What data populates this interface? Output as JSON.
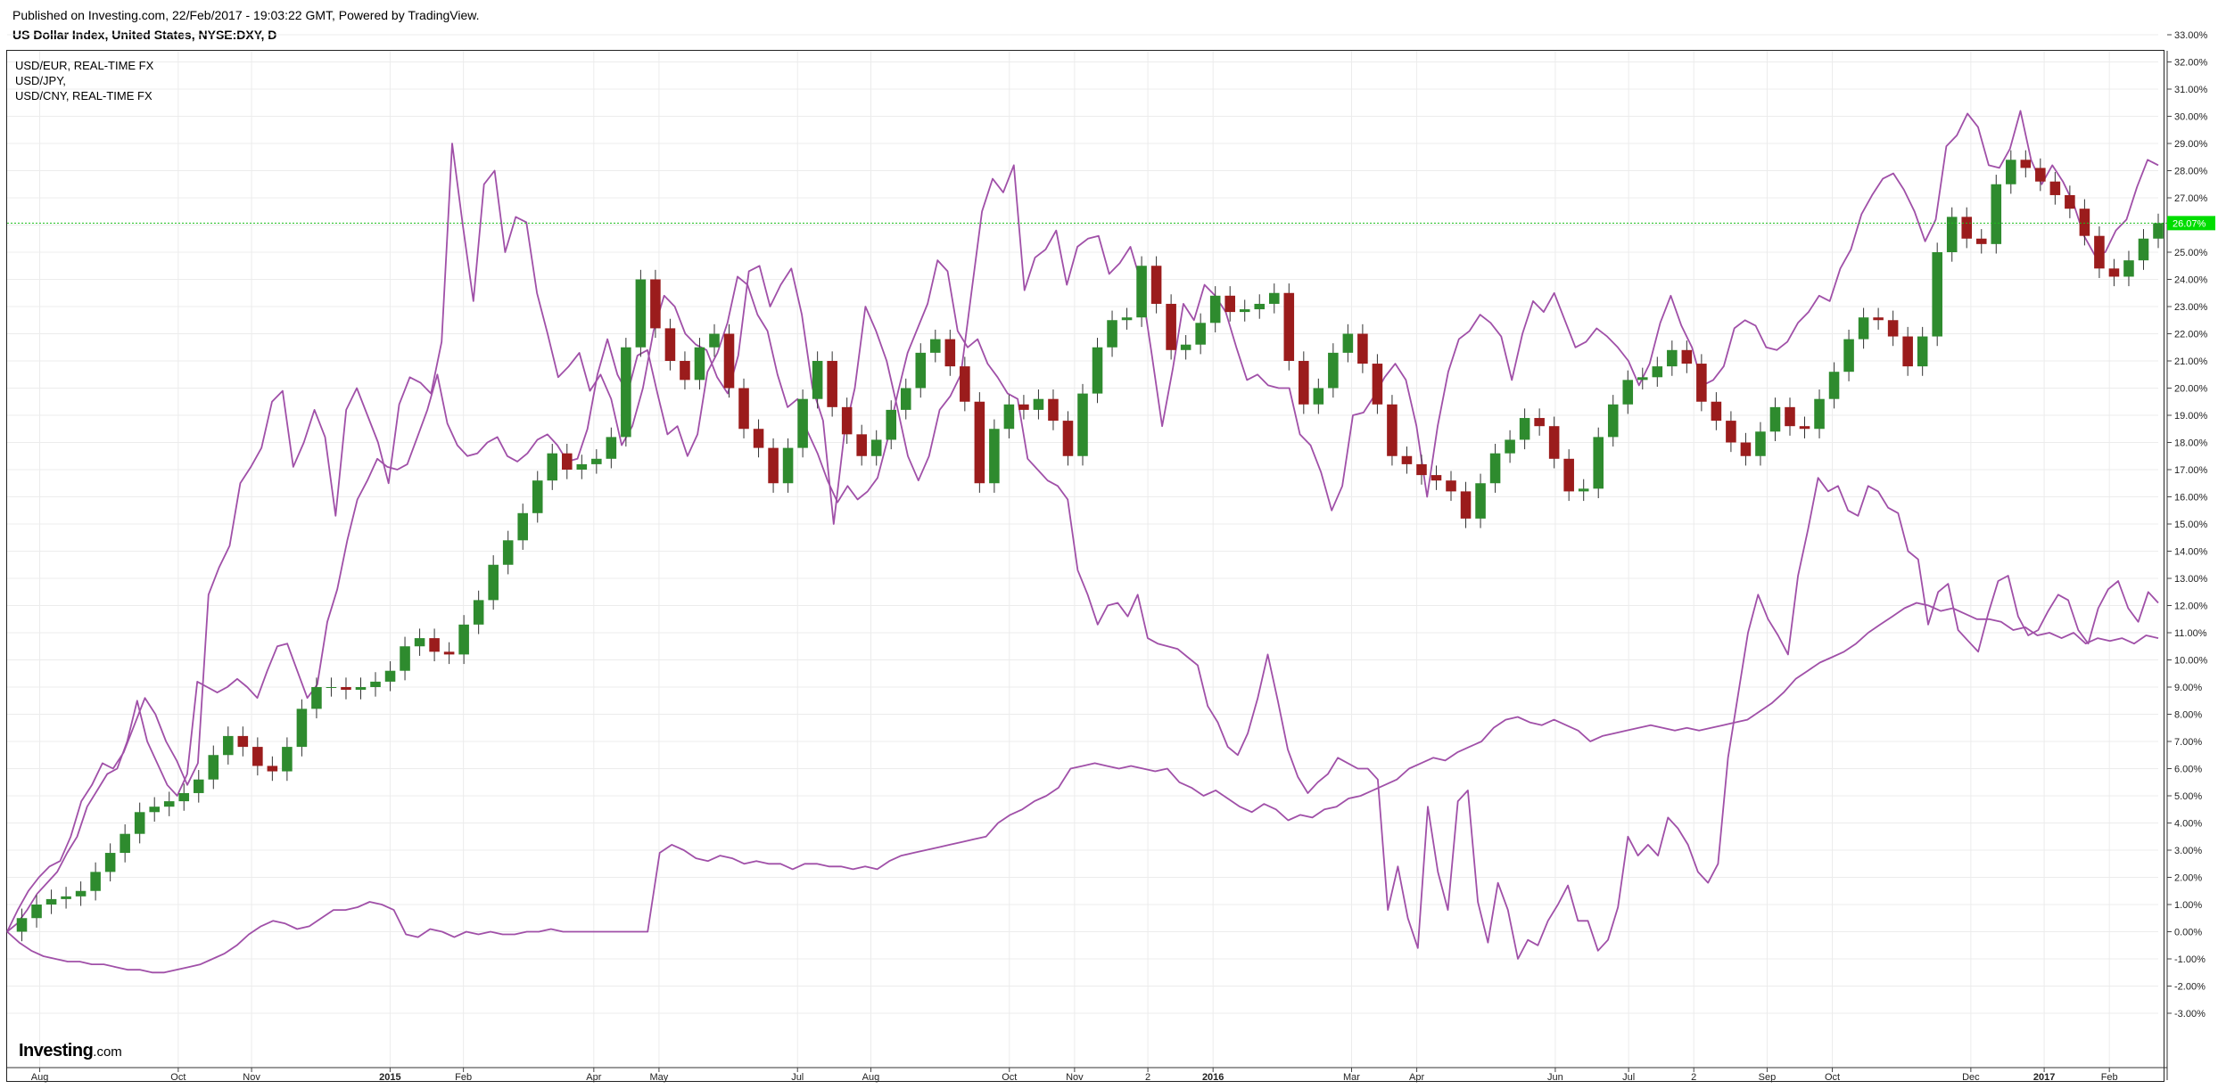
{
  "header": {
    "published": "Published on Investing.com, 22/Feb/2017 - 19:03:22 GMT, Powered by TradingView.",
    "title": "US Dollar Index, United States, NYSE:DXY, D"
  },
  "legend": {
    "items": [
      "USD/EUR, REAL-TIME FX",
      "USD/JPY,",
      "USD/CNY, REAL-TIME FX"
    ]
  },
  "logo": {
    "text": "Investing",
    "suffix": ".com"
  },
  "colors": {
    "up_candle": "#2e8b2e",
    "down_candle": "#9b1c1c",
    "compare_lines": "#a050a8",
    "last_price_badge": "#00dd00",
    "last_price_line": "#1bbf1b"
  },
  "chart_data": {
    "type": "line",
    "y_axis_unit": "%",
    "ylim": [
      -3.5,
      33.6
    ],
    "y_ticks": [
      "33.00%",
      "32.00%",
      "31.00%",
      "30.00%",
      "29.00%",
      "28.00%",
      "27.00%",
      "26.00%",
      "25.00%",
      "24.00%",
      "23.00%",
      "22.00%",
      "21.00%",
      "20.00%",
      "19.00%",
      "18.00%",
      "17.00%",
      "16.00%",
      "15.00%",
      "14.00%",
      "13.00%",
      "12.00%",
      "11.00%",
      "10.00%",
      "9.00%",
      "8.00%",
      "7.00%",
      "6.00%",
      "5.00%",
      "4.00%",
      "3.00%",
      "2.00%",
      "1.00%",
      "0.00%",
      "-1.00%",
      "-2.00%",
      "-3.00%"
    ],
    "x_ticks": [
      {
        "label": "Aug",
        "i": 4,
        "bold": false
      },
      {
        "label": "Oct",
        "i": 21,
        "bold": false
      },
      {
        "label": "Nov",
        "i": 30,
        "bold": false
      },
      {
        "label": "2015",
        "i": 47,
        "bold": true
      },
      {
        "label": "Feb",
        "i": 56,
        "bold": false
      },
      {
        "label": "Apr",
        "i": 72,
        "bold": false
      },
      {
        "label": "May",
        "i": 80,
        "bold": false
      },
      {
        "label": "Jul",
        "i": 97,
        "bold": false
      },
      {
        "label": "Aug",
        "i": 106,
        "bold": false
      },
      {
        "label": "Oct",
        "i": 123,
        "bold": false
      },
      {
        "label": "Nov",
        "i": 131,
        "bold": false
      },
      {
        "label": "2",
        "i": 140,
        "bold": false
      },
      {
        "label": "2016",
        "i": 148,
        "bold": true
      },
      {
        "label": "Mar",
        "i": 165,
        "bold": false
      },
      {
        "label": "Apr",
        "i": 173,
        "bold": false
      },
      {
        "label": "Jun",
        "i": 190,
        "bold": false
      },
      {
        "label": "Jul",
        "i": 199,
        "bold": false
      },
      {
        "label": "2",
        "i": 207,
        "bold": false
      },
      {
        "label": "Sep",
        "i": 216,
        "bold": false
      },
      {
        "label": "Oct",
        "i": 224,
        "bold": false
      },
      {
        "label": "Dec",
        "i": 241,
        "bold": false
      },
      {
        "label": "2017",
        "i": 250,
        "bold": true
      },
      {
        "label": "Feb",
        "i": 258,
        "bold": false
      }
    ],
    "last_value_label": "26.07%",
    "last_value": 26.07,
    "series": [
      {
        "name": "US Dollar Index, United States, NYSE:DXY, D",
        "kind": "candles",
        "values": [
          0,
          0.5,
          1,
          1.2,
          1.3,
          1.5,
          2.2,
          2.9,
          3.6,
          4.4,
          4.6,
          4.8,
          5.1,
          5.6,
          6.5,
          7.2,
          6.8,
          6.1,
          5.9,
          6.8,
          8.2,
          9,
          9,
          8.9,
          9,
          9.2,
          9.6,
          10.5,
          10.8,
          10.3,
          10.2,
          11.3,
          12.2,
          13.5,
          14.4,
          15.4,
          16.6,
          17.6,
          17,
          17.2,
          17.4,
          18.2,
          21.5,
          24,
          22.2,
          21,
          20.3,
          21.5,
          22,
          20,
          18.5,
          17.8,
          16.5,
          17.8,
          19.6,
          21,
          19.3,
          18.3,
          17.5,
          18.1,
          19.2,
          20,
          21.3,
          21.8,
          20.8,
          19.5,
          16.5,
          18.5,
          19.4,
          19.2,
          19.6,
          18.8,
          17.5,
          19.8,
          21.5,
          22.5,
          22.6,
          24.5,
          23.1,
          21.4,
          21.6,
          22.4,
          23.4,
          22.8,
          22.9,
          23.1,
          23.5,
          21,
          19.4,
          20,
          21.3,
          22,
          20.9,
          19.4,
          17.5,
          17.2,
          16.8,
          16.6,
          16.2,
          15.2,
          16.5,
          17.6,
          18.1,
          18.9,
          18.6,
          17.4,
          16.2,
          16.3,
          18.2,
          19.4,
          20.3,
          20.4,
          20.8,
          21.4,
          20.9,
          19.5,
          18.8,
          18,
          17.5,
          18.4,
          19.3,
          18.6,
          18.5,
          19.6,
          20.6,
          21.8,
          22.6,
          22.5,
          21.9,
          20.8,
          21.9,
          25,
          26.3,
          25.5,
          25.3,
          27.5,
          28.4,
          28.1,
          27.6,
          27.1,
          26.6,
          25.6,
          24.4,
          24.1,
          24.7,
          25.5,
          26.07
        ]
      },
      {
        "name": "USD/EUR, REAL-TIME FX",
        "kind": "line",
        "values": [
          0,
          0.8,
          1.5,
          2,
          2.4,
          2.6,
          3.5,
          4.8,
          5.4,
          6.2,
          6,
          6.6,
          7.6,
          8.6,
          8,
          7,
          6.3,
          5.4,
          6.2,
          12.4,
          13.4,
          14.2,
          16.5,
          17.1,
          17.8,
          19.5,
          19.9,
          17.1,
          18,
          19.2,
          18.2,
          15.3,
          19.2,
          20,
          19,
          18,
          16.5,
          19.4,
          20.4,
          20.2,
          19.8,
          21.7,
          29,
          26,
          23.2,
          27.5,
          28,
          25,
          26.3,
          26.1,
          23.5,
          22,
          20.4,
          20.8,
          21.3,
          19.9,
          20.5,
          19.6,
          17.9,
          18.6,
          20,
          22.1,
          23.4,
          23,
          22,
          21.6,
          21.4,
          20.4,
          19.8,
          21.2,
          24.3,
          24.5,
          23,
          23.8,
          24.4,
          22.7,
          20,
          18.8,
          15,
          18.3,
          20,
          23,
          22.1,
          21,
          19.3,
          17.5,
          16.6,
          17.5,
          19.2,
          19.7,
          20.5,
          23.5,
          26.5,
          27.7,
          27.2,
          28.2,
          23.6,
          24.8,
          25.1,
          25.8,
          23.8,
          25.2,
          25.5,
          25.6,
          24.2,
          24.6,
          25.2,
          23.9,
          21.3,
          18.6,
          20.7,
          23.1,
          22.5,
          23.8,
          23.4,
          22.8,
          21.5,
          20.3,
          20.5,
          20.1,
          20,
          20,
          18.3,
          17.9,
          16.9,
          15.5,
          16.4,
          19,
          19.1,
          19.7,
          20.4,
          20.9,
          20.3,
          18.6,
          16,
          18.6,
          20.6,
          21.8,
          22.1,
          22.7,
          22.4,
          21.9,
          20.3,
          22,
          23.2,
          22.8,
          23.5,
          22.5,
          21.5,
          21.7,
          22.2,
          21.9,
          21.5,
          21,
          20.1,
          20.9,
          22.4,
          23.4,
          22.3,
          21.5,
          20.1,
          20.3,
          20.8,
          22.2,
          22.5,
          22.3,
          21.5,
          21.4,
          21.7,
          22.4,
          22.8,
          23.4,
          23.2,
          24.4,
          25.1,
          26.4,
          27.1,
          27.7,
          27.9,
          27.3,
          26.5,
          25.4,
          26.2,
          28.9,
          29.3,
          30.1,
          29.6,
          28.2,
          28.1,
          28.8,
          30.2,
          28.4,
          27.5,
          28.2,
          27.6,
          26.8,
          25.6,
          24.9,
          25,
          25.8,
          26.2,
          27.4,
          28.4,
          28.2
        ]
      },
      {
        "name": "USD/JPY,",
        "kind": "line",
        "values": [
          0,
          0.3,
          0.8,
          1.4,
          1.8,
          2.2,
          2.9,
          3.5,
          4.6,
          5.2,
          5.8,
          6,
          7,
          8.5,
          7,
          6.2,
          5.4,
          5,
          5.8,
          9.2,
          9,
          8.8,
          9,
          9.3,
          9,
          8.6,
          9.6,
          10.5,
          10.6,
          9.6,
          8.6,
          9.1,
          11.4,
          12.6,
          14.4,
          15.9,
          16.6,
          17.4,
          17.1,
          17,
          17.2,
          18.2,
          19.2,
          20.5,
          18.7,
          17.9,
          17.5,
          17.6,
          18,
          18.2,
          17.5,
          17.3,
          17.6,
          18.1,
          18.3,
          17.9,
          17.3,
          17.4,
          18.5,
          20.5,
          21.8,
          20.5,
          19.8,
          21.2,
          21.4,
          19.8,
          18.3,
          18.6,
          17.5,
          18.3,
          20.6,
          21.3,
          22.4,
          24.1,
          23.8,
          22.7,
          22.1,
          20.5,
          19.3,
          19.6,
          18.4,
          17.6,
          16.6,
          15.8,
          16.4,
          15.9,
          16.2,
          16.7,
          18.1,
          19.8,
          21.3,
          22.2,
          23.1,
          24.7,
          24.3,
          22.1,
          21.5,
          21.8,
          20.9,
          20.4,
          19.8,
          19.6,
          17.4,
          17,
          16.6,
          16.4,
          15.9,
          13.3,
          12.4,
          11.3,
          12,
          12.1,
          11.6,
          12.4,
          10.8,
          10.6,
          10.5,
          10.4,
          10.1,
          9.8,
          8.3,
          7.7,
          6.8,
          6.5,
          7.3,
          8.6,
          10.2,
          8.5,
          6.7,
          5.7,
          5.1,
          5.5,
          5.8,
          6.4,
          6.2,
          6,
          6,
          5.6,
          0.8,
          2.4,
          0.5,
          -0.6,
          4.6,
          2.2,
          0.8,
          4.8,
          5.2,
          1.1,
          -0.4,
          1.8,
          0.8,
          -1,
          -0.3,
          -0.5,
          0.4,
          1,
          1.7,
          0.4,
          0.4,
          -0.7,
          -0.3,
          0.9,
          3.5,
          2.8,
          3.2,
          2.8,
          4.2,
          3.8,
          3.2,
          2.2,
          1.8,
          2.5,
          6.4,
          8.7,
          11,
          12.4,
          11.5,
          10.9,
          10.2,
          13.1,
          14.8,
          16.7,
          16.2,
          16.4,
          15.5,
          15.3,
          16.4,
          16.2,
          15.6,
          15.4,
          14,
          13.7,
          11.3,
          12.5,
          12.8,
          11.1,
          10.7,
          10.3,
          11.7,
          12.9,
          13.1,
          11.6,
          10.9,
          11.1,
          11.8,
          12.4,
          12.2,
          11.1,
          10.6,
          11.9,
          12.6,
          12.9,
          11.9,
          11.4,
          12.5,
          12.1
        ]
      },
      {
        "name": "USD/CNY, REAL-TIME FX",
        "kind": "line",
        "values": [
          0,
          -0.4,
          -0.7,
          -0.9,
          -1,
          -1.1,
          -1.1,
          -1.2,
          -1.2,
          -1.3,
          -1.4,
          -1.4,
          -1.5,
          -1.5,
          -1.4,
          -1.3,
          -1.2,
          -1,
          -0.8,
          -0.5,
          -0.1,
          0.2,
          0.4,
          0.3,
          0.1,
          0.2,
          0.5,
          0.8,
          0.8,
          0.9,
          1.1,
          1,
          0.8,
          -0.1,
          -0.2,
          0.1,
          0,
          -0.2,
          0,
          -0.1,
          0,
          -0.1,
          -0.1,
          0,
          0,
          0.1,
          0,
          0,
          0,
          0,
          0,
          0,
          0,
          0,
          2.9,
          3.2,
          3,
          2.7,
          2.6,
          2.8,
          2.7,
          2.5,
          2.6,
          2.5,
          2.5,
          2.3,
          2.5,
          2.5,
          2.4,
          2.4,
          2.3,
          2.4,
          2.3,
          2.6,
          2.8,
          2.9,
          3,
          3.1,
          3.2,
          3.3,
          3.4,
          3.5,
          4,
          4.3,
          4.5,
          4.8,
          5,
          5.3,
          6,
          6.1,
          6.2,
          6.1,
          6,
          6.1,
          6,
          5.9,
          6,
          5.5,
          5.3,
          5,
          5.2,
          4.9,
          4.6,
          4.4,
          4.7,
          4.5,
          4.1,
          4.3,
          4.2,
          4.5,
          4.6,
          4.9,
          5,
          5.2,
          5.4,
          5.6,
          6,
          6.2,
          6.4,
          6.3,
          6.6,
          6.8,
          7,
          7.5,
          7.8,
          7.9,
          7.7,
          7.6,
          7.8,
          7.6,
          7.4,
          7,
          7.2,
          7.3,
          7.4,
          7.5,
          7.6,
          7.5,
          7.4,
          7.5,
          7.4,
          7.5,
          7.6,
          7.7,
          7.8,
          8.1,
          8.4,
          8.8,
          9.3,
          9.6,
          9.9,
          10.1,
          10.3,
          10.6,
          11,
          11.3,
          11.6,
          11.9,
          12.1,
          12,
          11.8,
          11.9,
          11.7,
          11.5,
          11.5,
          11.4,
          11.1,
          11.2,
          10.9,
          11,
          10.8,
          11,
          10.6,
          10.8,
          10.7,
          10.8,
          10.6,
          10.9,
          10.8
        ]
      }
    ]
  }
}
